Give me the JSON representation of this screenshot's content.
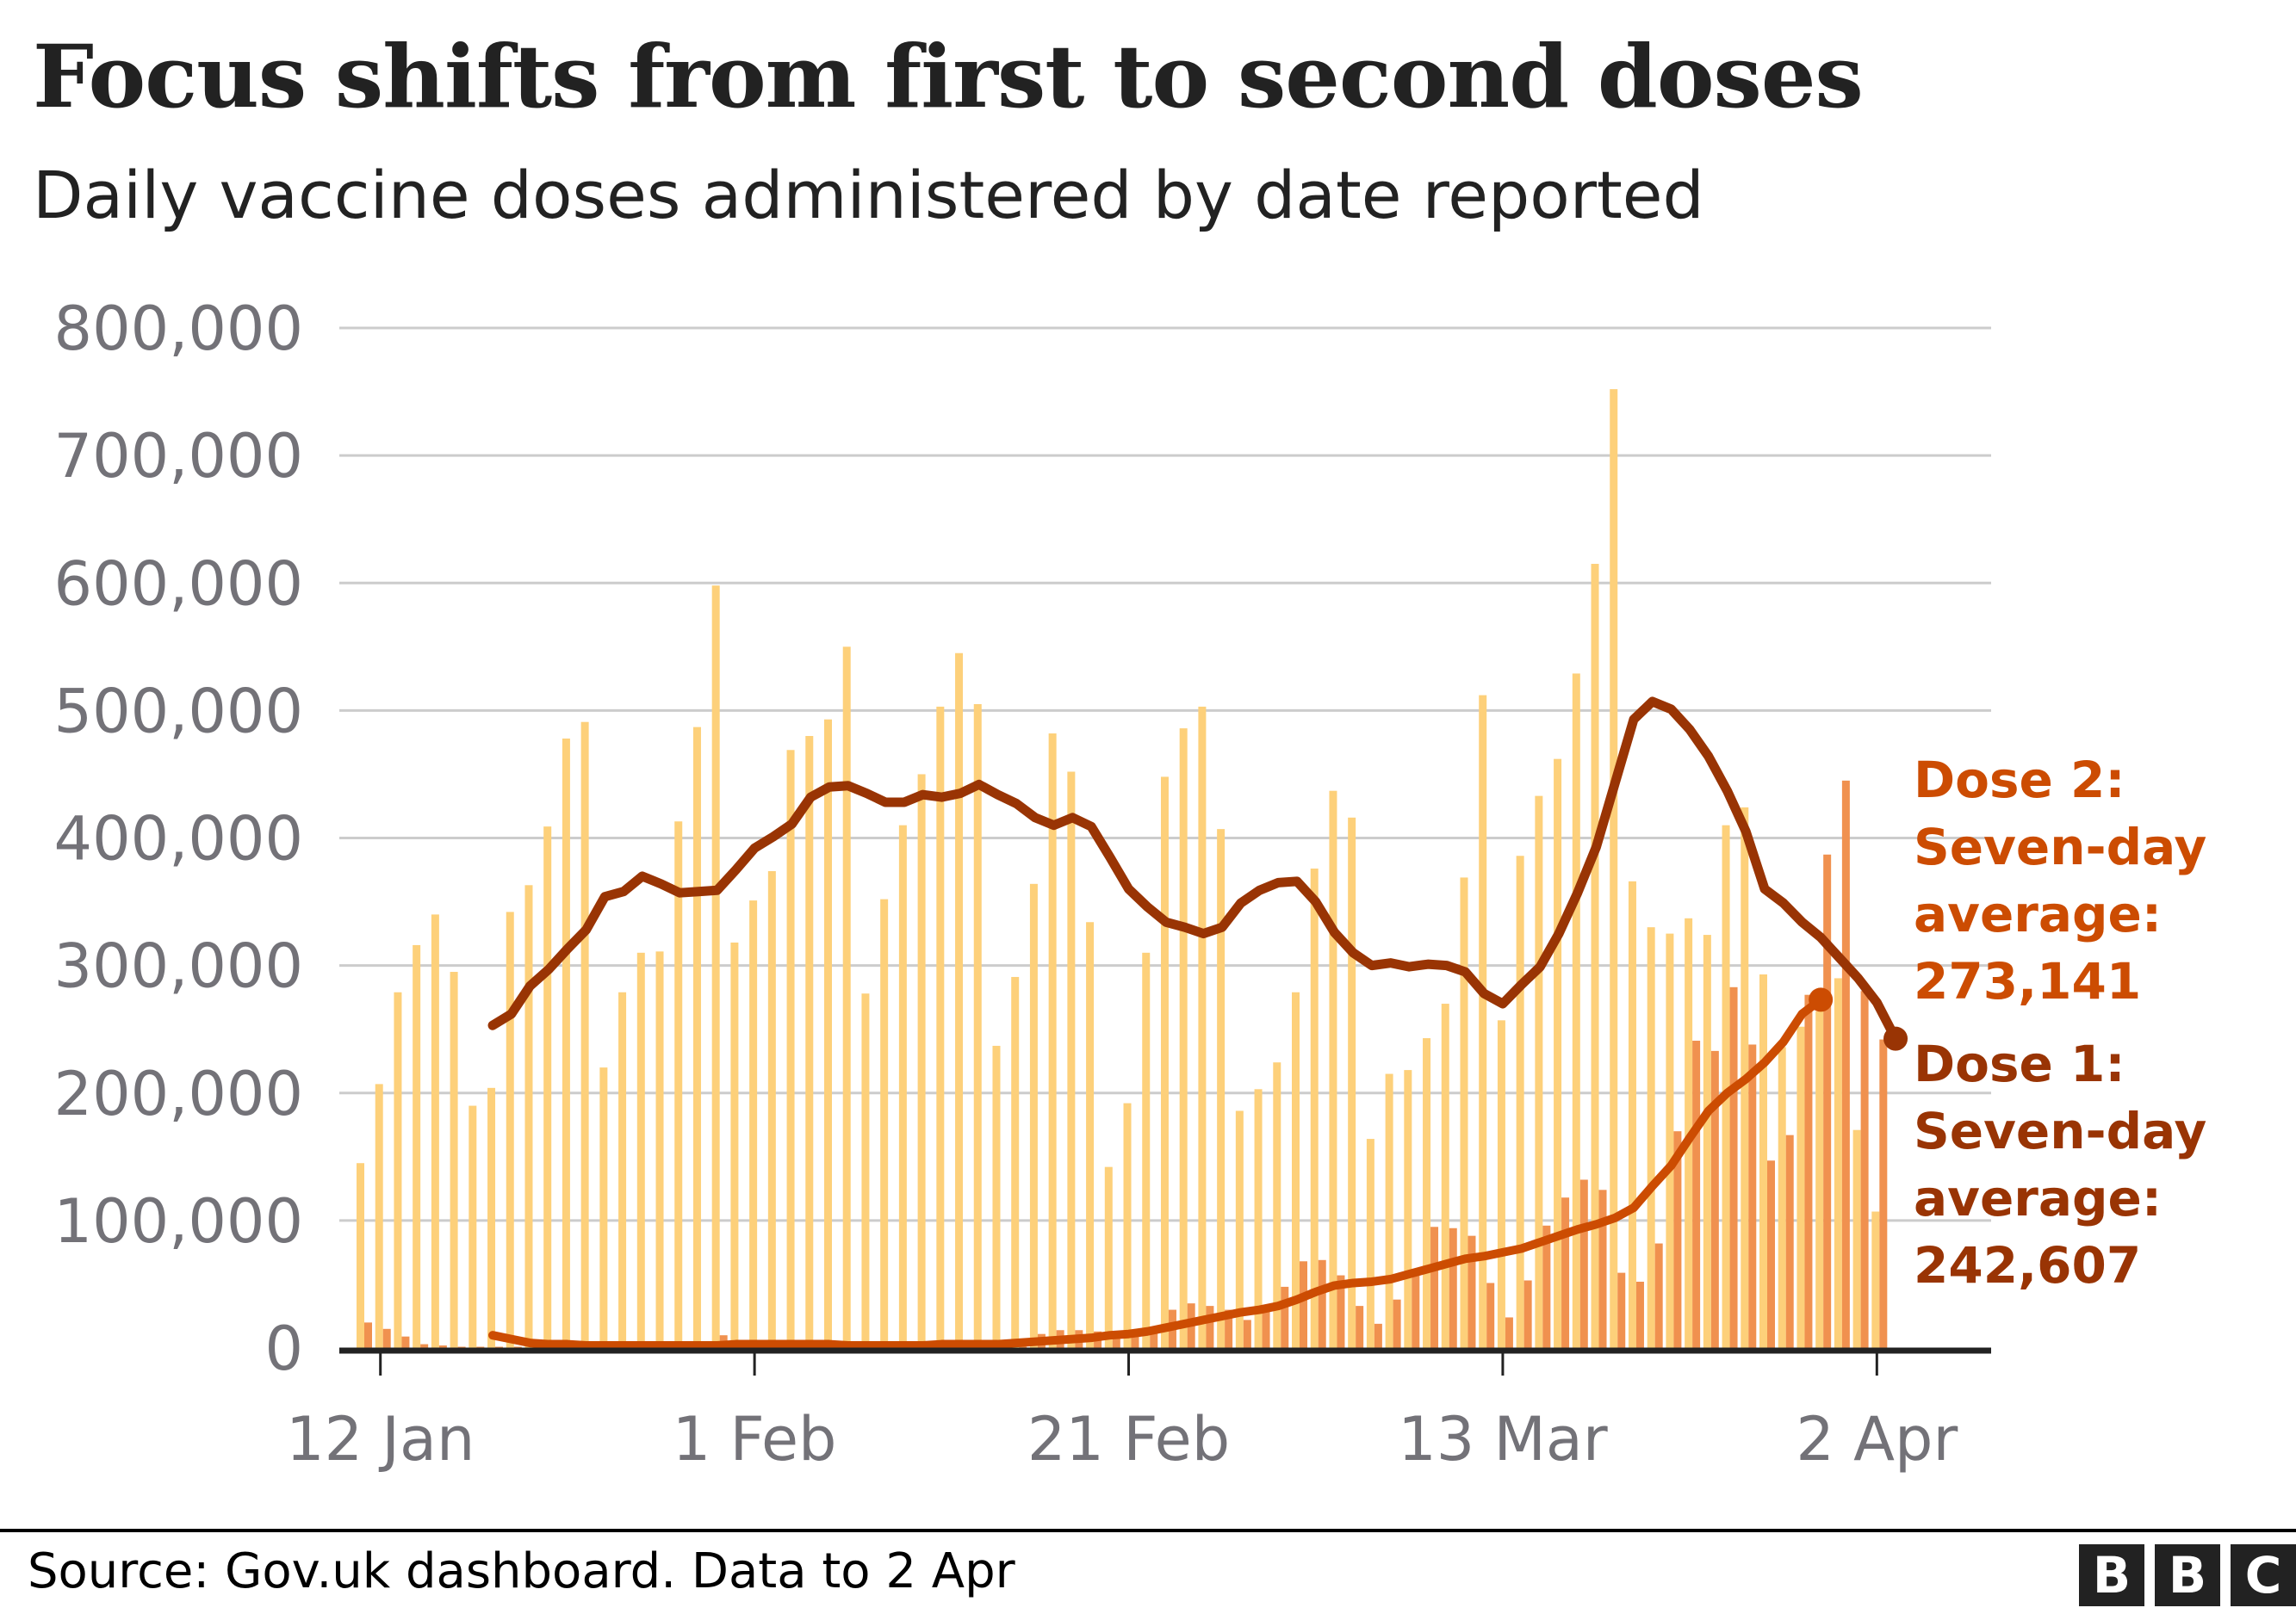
{
  "header": {
    "title": "Focus shifts from first to second doses",
    "subtitle": "Daily vaccine doses administered by date reported"
  },
  "footer": {
    "source": "Source: Gov.uk dashboard. Data to 2 Apr",
    "logo_letters": [
      "B",
      "B",
      "C"
    ]
  },
  "annotations": {
    "dose2": {
      "line1": "Dose 2:",
      "line2": "Seven-day",
      "line3": "average:",
      "line4": "273,141",
      "color": "#CC4C02"
    },
    "dose1": {
      "line1": "Dose 1:",
      "line2": "Seven-day",
      "line3": "average:",
      "line4": "242,607",
      "color": "#993404"
    }
  },
  "colors": {
    "dose1_bar": "#FDD07A",
    "dose2_bar": "#F0914F",
    "dose1_line": "#993404",
    "dose2_line": "#CC4C02",
    "gridline": "#CCCCCC",
    "axis": "#222222",
    "tick_label": "#737278"
  },
  "chart_data": {
    "type": "bar",
    "title": "Focus shifts from first to second doses",
    "subtitle": "Daily vaccine doses administered by date reported",
    "xlabel": "",
    "ylabel": "",
    "ylim": [
      0,
      800000
    ],
    "grid": true,
    "yticks": [
      "0",
      "100,000",
      "200,000",
      "300,000",
      "400,000",
      "500,000",
      "600,000",
      "700,000",
      "800,000"
    ],
    "xticks": [
      "12 Jan",
      "1 Feb",
      "21 Feb",
      "13 Mar",
      "2 Apr"
    ],
    "x_start": "11 Jan",
    "x_end": "2 Apr",
    "series": [
      {
        "name": "Dose 1 daily",
        "kind": "bar",
        "values": [
          145000,
          207000,
          279000,
          316000,
          340000,
          295000,
          190000,
          204000,
          342000,
          363000,
          409000,
          478000,
          491000,
          220000,
          279000,
          310000,
          311000,
          413000,
          487000,
          598000,
          318000,
          351000,
          374000,
          469000,
          480000,
          493000,
          550000,
          278000,
          352000,
          410000,
          450000,
          503000,
          545000,
          505000,
          237000,
          291000,
          364000,
          482000,
          452000,
          334000,
          142000,
          192000,
          310000,
          448000,
          486000,
          503000,
          407000,
          186000,
          203000,
          224000,
          279000,
          376000,
          437000,
          416000,
          164000,
          215000,
          218000,
          243000,
          270000,
          369000,
          512000,
          257000,
          386000,
          433000,
          462000,
          529000,
          615000,
          752000,
          366000,
          330000,
          325000,
          337000,
          324000,
          410000,
          424000,
          293000,
          236000,
          252000,
          264000,
          290000,
          171000,
          107000
        ]
      },
      {
        "name": "Dose 2 daily",
        "kind": "bar",
        "values": [
          20000,
          15000,
          9000,
          3000,
          2000,
          1000,
          1000,
          1000,
          1000,
          1000,
          1000,
          1000,
          1000,
          1000,
          1000,
          1000,
          1000,
          1000,
          1000,
          10000,
          1000,
          1000,
          1000,
          1000,
          1000,
          1000,
          1000,
          1000,
          1000,
          1000,
          1000,
          1000,
          1000,
          1000,
          1000,
          1000,
          11000,
          14000,
          14000,
          13000,
          12000,
          11000,
          15000,
          30000,
          35000,
          33000,
          30000,
          22000,
          31000,
          48000,
          68000,
          69000,
          57000,
          33000,
          19000,
          38000,
          59000,
          95000,
          94000,
          88000,
          51000,
          24000,
          53000,
          96000,
          118000,
          132000,
          124000,
          59000,
          52000,
          82000,
          170000,
          241000,
          233000,
          283000,
          238000,
          147000,
          167000,
          277000,
          387000,
          445000,
          280000,
          242000
        ]
      },
      {
        "name": "Dose 1 seven-day average",
        "kind": "line",
        "start_index": 7,
        "values": [
          253000,
          262000,
          284000,
          297000,
          313000,
          328000,
          354000,
          358000,
          370000,
          364000,
          357000,
          358000,
          359000,
          375000,
          392000,
          401000,
          411000,
          432000,
          440000,
          441000,
          435000,
          428000,
          428000,
          434000,
          432000,
          435000,
          442000,
          434000,
          427000,
          416000,
          410000,
          416000,
          409000,
          385000,
          360000,
          346000,
          334000,
          330000,
          325000,
          330000,
          349000,
          359000,
          365000,
          366000,
          350000,
          326000,
          310000,
          300000,
          302000,
          299000,
          301000,
          300000,
          295000,
          278000,
          270000,
          285000,
          299000,
          325000,
          357000,
          393000,
          443000,
          493000,
          507000,
          501000,
          485000,
          464000,
          437000,
          405000,
          360000,
          349000,
          334000,
          322000,
          306000,
          290000,
          271000,
          242607
        ]
      },
      {
        "name": "Dose 2 seven-day average",
        "kind": "line",
        "start_index": 7,
        "values": [
          10000,
          7000,
          4000,
          3000,
          3000,
          2000,
          2000,
          2000,
          2000,
          2000,
          2000,
          2000,
          2000,
          3000,
          3000,
          3000,
          3000,
          3000,
          3000,
          2000,
          2000,
          2000,
          2000,
          2000,
          3000,
          3000,
          3000,
          3000,
          4000,
          5000,
          6000,
          7000,
          8000,
          10000,
          11000,
          13000,
          16000,
          19000,
          22000,
          25000,
          28000,
          30000,
          33000,
          38000,
          44000,
          49000,
          51000,
          52000,
          54000,
          58000,
          62000,
          66000,
          70000,
          72000,
          75000,
          78000,
          83000,
          88000,
          93000,
          97000,
          102000,
          110000,
          127000,
          143000,
          165000,
          186000,
          200000,
          211000,
          224000,
          240000,
          262000,
          273141
        ]
      }
    ]
  }
}
